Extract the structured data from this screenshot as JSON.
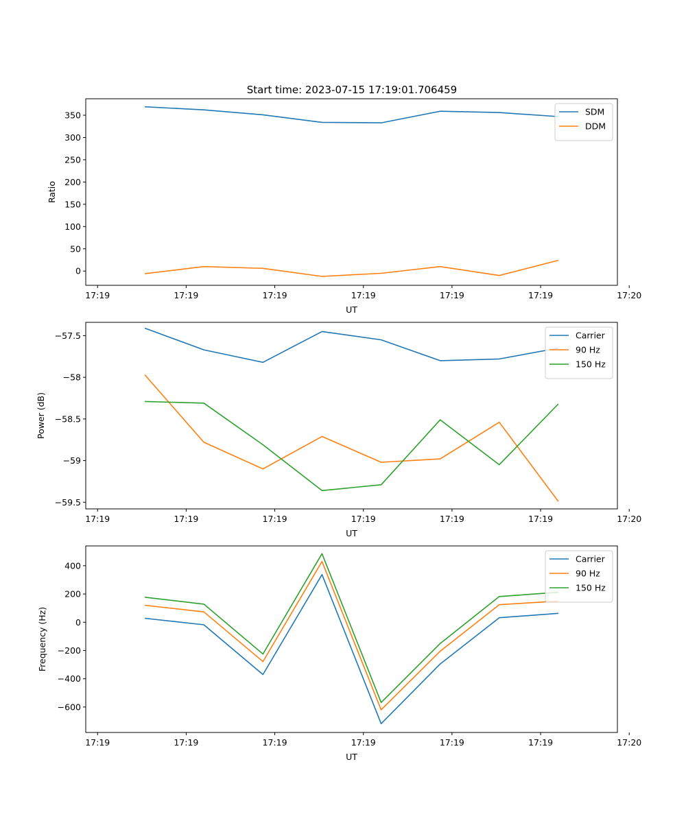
{
  "figure_title": "Start time: 2023-07-15 17:19:01.706459",
  "chart_data": [
    {
      "type": "line",
      "title": "Start time: 2023-07-15 17:19:01.706459",
      "xlabel": "UT",
      "ylabel": "Ratio",
      "x_tick_labels": [
        "17:19",
        "17:19",
        "17:19",
        "17:19",
        "17:19",
        "17:19",
        "17:20"
      ],
      "xlim": [
        -0.5,
        8.5
      ],
      "x_ticks": [
        -0.3,
        1.2,
        2.7,
        4.2,
        5.7,
        7.2,
        8.7
      ],
      "ylim": [
        -32,
        387
      ],
      "y_ticks": [
        0,
        50,
        100,
        150,
        200,
        250,
        300,
        350
      ],
      "legend_position": "top-right",
      "x": [
        0.5,
        1.5,
        2.5,
        3.5,
        4.5,
        5.5,
        6.5,
        7.5
      ],
      "series": [
        {
          "name": "SDM",
          "color": "#1f77b4",
          "values": [
            369,
            362,
            351,
            334,
            333,
            359,
            356,
            347
          ]
        },
        {
          "name": "DDM",
          "color": "#ff7f0e",
          "values": [
            -6,
            10,
            6,
            -12,
            -5,
            10,
            -10,
            24
          ]
        }
      ]
    },
    {
      "type": "line",
      "xlabel": "UT",
      "ylabel": "Power (dB)",
      "x_tick_labels": [
        "17:19",
        "17:19",
        "17:19",
        "17:19",
        "17:19",
        "17:19",
        "17:20"
      ],
      "xlim": [
        -0.5,
        8.5
      ],
      "x_ticks": [
        -0.3,
        1.2,
        2.7,
        4.2,
        5.7,
        7.2,
        8.7
      ],
      "ylim": [
        -59.58,
        -57.34
      ],
      "y_ticks": [
        -57.5,
        -58.0,
        -58.5,
        -59.0,
        -59.5
      ],
      "legend_position": "top-right",
      "x": [
        0.5,
        1.5,
        2.5,
        3.5,
        4.5,
        5.5,
        6.5,
        7.5
      ],
      "series": [
        {
          "name": "Carrier",
          "color": "#1f77b4",
          "values": [
            -57.41,
            -57.67,
            -57.82,
            -57.45,
            -57.55,
            -57.8,
            -57.78,
            -57.65
          ]
        },
        {
          "name": "90 Hz",
          "color": "#ff7f0e",
          "values": [
            -57.97,
            -58.78,
            -59.1,
            -58.71,
            -59.02,
            -58.98,
            -58.54,
            -59.49
          ]
        },
        {
          "name": "150 Hz",
          "color": "#2ca02c",
          "values": [
            -58.29,
            -58.31,
            -58.81,
            -59.36,
            -59.29,
            -58.51,
            -59.05,
            -58.32
          ]
        }
      ]
    },
    {
      "type": "line",
      "xlabel": "UT",
      "ylabel": "Frequency (Hz)",
      "x_tick_labels": [
        "17:19",
        "17:19",
        "17:19",
        "17:19",
        "17:19",
        "17:19",
        "17:20"
      ],
      "xlim": [
        -0.5,
        8.5
      ],
      "x_ticks": [
        -0.3,
        1.2,
        2.7,
        4.2,
        5.7,
        7.2,
        8.7
      ],
      "ylim": [
        -780,
        540
      ],
      "y_ticks": [
        400,
        200,
        0,
        -200,
        -400,
        -600
      ],
      "legend_position": "top-right",
      "x": [
        0.5,
        1.5,
        2.5,
        3.5,
        4.5,
        5.5,
        6.5,
        7.5
      ],
      "series": [
        {
          "name": "Carrier",
          "color": "#1f77b4",
          "values": [
            28,
            -18,
            -370,
            337,
            -718,
            -295,
            32,
            63
          ]
        },
        {
          "name": "90 Hz",
          "color": "#ff7f0e",
          "values": [
            120,
            73,
            -278,
            430,
            -620,
            -205,
            124,
            150
          ]
        },
        {
          "name": "150 Hz",
          "color": "#2ca02c",
          "values": [
            177,
            128,
            -225,
            485,
            -568,
            -150,
            182,
            212
          ]
        }
      ]
    }
  ]
}
